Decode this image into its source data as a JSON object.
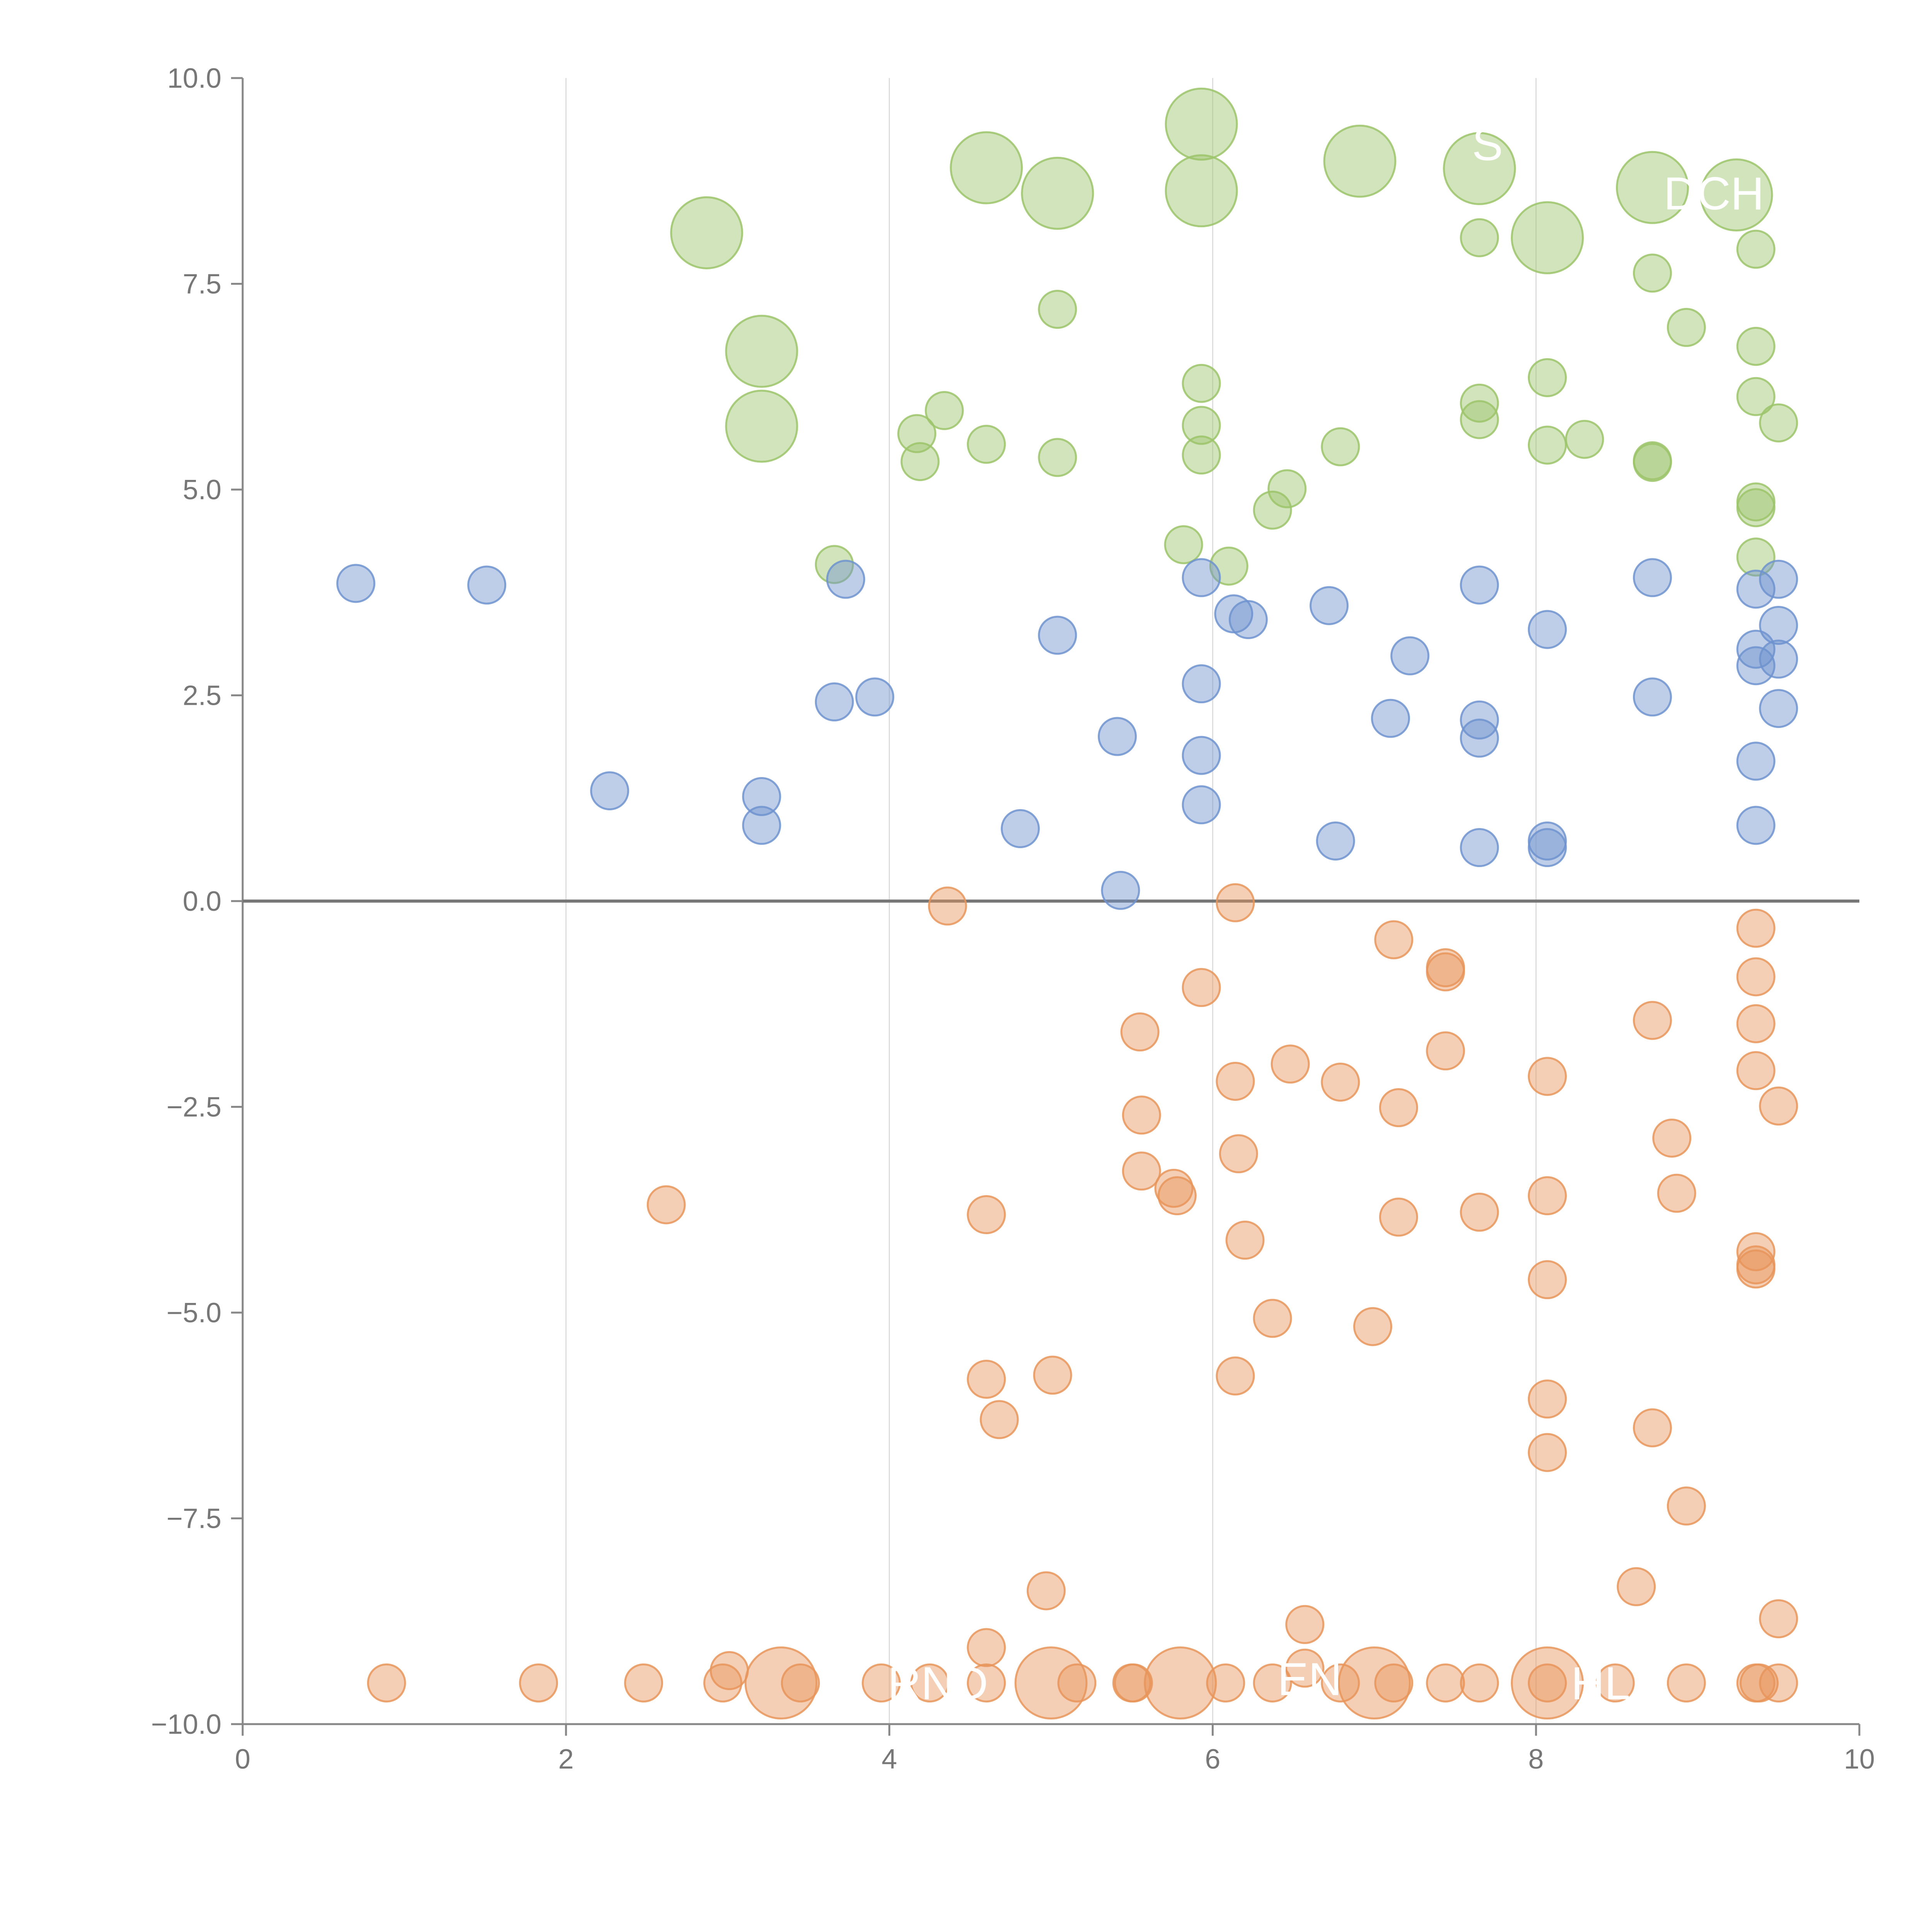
{
  "chart_data": {
    "type": "scatter",
    "title": "",
    "xlabel": "",
    "ylabel": "",
    "xlim": [
      0,
      10
    ],
    "ylim": [
      -10,
      10
    ],
    "x_ticks": [
      "0",
      "2",
      "4",
      "6",
      "8",
      "10"
    ],
    "y_ticks": [
      "−10.0",
      "−7.5",
      "−5.0",
      "−2.5",
      "0.0",
      "2.5",
      "5.0",
      "7.5",
      "10.0"
    ],
    "x_gridlines": [
      2,
      4,
      6,
      8
    ],
    "zero_line": 0,
    "grid": "vertical",
    "legend": "none",
    "colors": {
      "green": "#9cc46a",
      "blue": "#6f93cf",
      "orange": "#e8955a",
      "axis": "#888888",
      "zero_line": "#777777"
    },
    "point_labels": [
      {
        "text": "S",
        "x": 7.7,
        "y": 9.2
      },
      {
        "text": "DCH",
        "x": 9.1,
        "y": 8.6
      },
      {
        "text": "RND",
        "x": 4.3,
        "y": -9.5
      },
      {
        "text": "EN",
        "x": 6.6,
        "y": -9.45
      },
      {
        "text": "HL",
        "x": 8.4,
        "y": -9.5
      }
    ],
    "series": [
      {
        "color": "#9cc46a",
        "points": [
          [
            2.87,
            8.12,
            "L"
          ],
          [
            3.21,
            6.68,
            "L"
          ],
          [
            3.21,
            5.77,
            "L"
          ],
          [
            4.6,
            8.91,
            "L"
          ],
          [
            5.04,
            8.6,
            "L"
          ],
          [
            5.93,
            9.44,
            "L"
          ],
          [
            5.93,
            8.63,
            "L"
          ],
          [
            6.91,
            8.99,
            "L"
          ],
          [
            7.65,
            8.9,
            "L"
          ],
          [
            8.07,
            8.06,
            "L"
          ],
          [
            8.72,
            8.67,
            "L"
          ],
          [
            9.24,
            8.58,
            "L"
          ],
          [
            7.65,
            8.06,
            "S"
          ],
          [
            8.72,
            7.63,
            "S"
          ],
          [
            9.36,
            7.92,
            "S"
          ],
          [
            5.04,
            7.19,
            "S"
          ],
          [
            8.93,
            6.97,
            "S"
          ],
          [
            9.36,
            6.74,
            "S"
          ],
          [
            5.93,
            6.29,
            "S"
          ],
          [
            8.07,
            6.36,
            "S"
          ],
          [
            9.36,
            6.13,
            "S"
          ],
          [
            7.65,
            6.05,
            "S"
          ],
          [
            7.65,
            5.85,
            "S"
          ],
          [
            9.5,
            5.81,
            "S"
          ],
          [
            4.34,
            5.96,
            "S"
          ],
          [
            4.17,
            5.68,
            "S"
          ],
          [
            4.19,
            5.34,
            "S"
          ],
          [
            4.6,
            5.55,
            "S"
          ],
          [
            5.04,
            5.39,
            "S"
          ],
          [
            5.93,
            5.78,
            "S"
          ],
          [
            5.93,
            5.42,
            "S"
          ],
          [
            6.79,
            5.52,
            "S"
          ],
          [
            8.07,
            5.54,
            "S"
          ],
          [
            8.3,
            5.61,
            "S"
          ],
          [
            8.72,
            5.35,
            "S"
          ],
          [
            8.72,
            5.33,
            "S"
          ],
          [
            6.37,
            4.75,
            "S"
          ],
          [
            6.46,
            5.01,
            "S"
          ],
          [
            9.36,
            4.85,
            "S"
          ],
          [
            9.36,
            4.78,
            "S"
          ],
          [
            9.36,
            4.18,
            "S"
          ],
          [
            5.82,
            4.33,
            "S"
          ],
          [
            6.1,
            4.07,
            "S"
          ],
          [
            3.66,
            4.09,
            "S"
          ]
        ]
      },
      {
        "color": "#6f93cf",
        "points": [
          [
            0.7,
            3.86,
            "S"
          ],
          [
            1.51,
            3.84,
            "S"
          ],
          [
            3.73,
            3.91,
            "S"
          ],
          [
            5.93,
            3.93,
            "S"
          ],
          [
            6.72,
            3.59,
            "S"
          ],
          [
            6.13,
            3.49,
            "S"
          ],
          [
            6.22,
            3.42,
            "S"
          ],
          [
            7.65,
            3.84,
            "S"
          ],
          [
            8.72,
            3.93,
            "S"
          ],
          [
            9.36,
            3.79,
            "S"
          ],
          [
            9.5,
            3.91,
            "S"
          ],
          [
            9.5,
            3.35,
            "S"
          ],
          [
            5.04,
            3.23,
            "S"
          ],
          [
            7.22,
            2.98,
            "S"
          ],
          [
            8.07,
            3.3,
            "S"
          ],
          [
            9.36,
            3.06,
            "S"
          ],
          [
            9.36,
            2.86,
            "S"
          ],
          [
            9.5,
            2.94,
            "S"
          ],
          [
            3.66,
            2.42,
            "S"
          ],
          [
            3.91,
            2.48,
            "S"
          ],
          [
            5.93,
            2.64,
            "S"
          ],
          [
            7.1,
            2.22,
            "S"
          ],
          [
            7.65,
            2.2,
            "S"
          ],
          [
            7.65,
            1.98,
            "S"
          ],
          [
            8.72,
            2.48,
            "S"
          ],
          [
            9.5,
            2.34,
            "S"
          ],
          [
            5.41,
            2.0,
            "S"
          ],
          [
            5.93,
            1.77,
            "S"
          ],
          [
            9.36,
            1.7,
            "S"
          ],
          [
            2.27,
            1.34,
            "S"
          ],
          [
            3.21,
            1.27,
            "S"
          ],
          [
            3.21,
            0.92,
            "S"
          ],
          [
            4.81,
            0.88,
            "S"
          ],
          [
            5.93,
            1.17,
            "S"
          ],
          [
            6.76,
            0.73,
            "S"
          ],
          [
            7.65,
            0.65,
            "S"
          ],
          [
            8.07,
            0.73,
            "S"
          ],
          [
            8.07,
            0.65,
            "S"
          ],
          [
            9.36,
            0.92,
            "S"
          ],
          [
            5.43,
            0.13,
            "S"
          ]
        ]
      },
      {
        "color": "#e8955a",
        "points": [
          [
            4.36,
            -0.06,
            "S"
          ],
          [
            6.14,
            -0.02,
            "S"
          ],
          [
            9.36,
            -0.33,
            "S"
          ],
          [
            7.12,
            -0.47,
            "S"
          ],
          [
            7.44,
            -0.81,
            "S"
          ],
          [
            7.44,
            -0.86,
            "S"
          ],
          [
            9.36,
            -0.92,
            "S"
          ],
          [
            5.93,
            -1.05,
            "S"
          ],
          [
            8.72,
            -1.45,
            "S"
          ],
          [
            9.36,
            -1.49,
            "S"
          ],
          [
            5.55,
            -1.59,
            "S"
          ],
          [
            7.44,
            -1.82,
            "S"
          ],
          [
            6.48,
            -1.98,
            "S"
          ],
          [
            9.36,
            -2.06,
            "S"
          ],
          [
            8.07,
            -2.13,
            "S"
          ],
          [
            6.14,
            -2.19,
            "S"
          ],
          [
            6.79,
            -2.2,
            "S"
          ],
          [
            7.15,
            -2.51,
            "S"
          ],
          [
            9.5,
            -2.49,
            "S"
          ],
          [
            5.56,
            -2.6,
            "S"
          ],
          [
            8.84,
            -2.88,
            "S"
          ],
          [
            6.16,
            -3.07,
            "S"
          ],
          [
            5.56,
            -3.28,
            "S"
          ],
          [
            5.76,
            -3.49,
            "S"
          ],
          [
            5.78,
            -3.58,
            "S"
          ],
          [
            8.07,
            -3.58,
            "S"
          ],
          [
            8.87,
            -3.55,
            "S"
          ],
          [
            2.62,
            -3.69,
            "S"
          ],
          [
            4.6,
            -3.81,
            "S"
          ],
          [
            7.15,
            -3.84,
            "S"
          ],
          [
            7.65,
            -3.78,
            "S"
          ],
          [
            6.2,
            -4.12,
            "S"
          ],
          [
            9.36,
            -4.26,
            "S"
          ],
          [
            9.36,
            -4.42,
            "S"
          ],
          [
            9.36,
            -4.47,
            "S"
          ],
          [
            8.07,
            -4.6,
            "S"
          ],
          [
            6.37,
            -5.07,
            "S"
          ],
          [
            6.99,
            -5.17,
            "S"
          ],
          [
            4.6,
            -5.81,
            "S"
          ],
          [
            5.01,
            -5.76,
            "S"
          ],
          [
            6.14,
            -5.77,
            "S"
          ],
          [
            8.07,
            -6.05,
            "S"
          ],
          [
            4.68,
            -6.3,
            "S"
          ],
          [
            8.72,
            -6.4,
            "S"
          ],
          [
            8.07,
            -6.7,
            "S"
          ],
          [
            8.93,
            -7.35,
            "S"
          ],
          [
            4.97,
            -8.38,
            "S"
          ],
          [
            8.62,
            -8.33,
            "S"
          ],
          [
            9.5,
            -8.72,
            "S"
          ],
          [
            6.57,
            -8.79,
            "S"
          ],
          [
            4.6,
            -9.07,
            "S"
          ],
          [
            3.01,
            -9.35,
            "S"
          ],
          [
            6.57,
            -9.32,
            "S"
          ],
          [
            0.89,
            -9.5,
            "S"
          ],
          [
            1.83,
            -9.5,
            "S"
          ],
          [
            2.48,
            -9.5,
            "S"
          ],
          [
            2.97,
            -9.5,
            "S"
          ],
          [
            3.45,
            -9.5,
            "S"
          ],
          [
            3.95,
            -9.5,
            "S"
          ],
          [
            4.25,
            -9.5,
            "S"
          ],
          [
            4.6,
            -9.5,
            "S"
          ],
          [
            5.16,
            -9.5,
            "S"
          ],
          [
            5.5,
            -9.5,
            "S"
          ],
          [
            5.51,
            -9.5,
            "S"
          ],
          [
            6.08,
            -9.5,
            "S"
          ],
          [
            6.37,
            -9.5,
            "S"
          ],
          [
            6.79,
            -9.5,
            "S"
          ],
          [
            7.12,
            -9.5,
            "S"
          ],
          [
            7.44,
            -9.5,
            "S"
          ],
          [
            7.65,
            -9.5,
            "S"
          ],
          [
            8.07,
            -9.5,
            "S"
          ],
          [
            8.49,
            -9.5,
            "S"
          ],
          [
            8.93,
            -9.5,
            "S"
          ],
          [
            9.36,
            -9.5,
            "S"
          ],
          [
            9.38,
            -9.5,
            "S"
          ],
          [
            9.5,
            -9.5,
            "S"
          ],
          [
            3.33,
            -9.5,
            "L"
          ],
          [
            5.0,
            -9.5,
            "L"
          ],
          [
            5.8,
            -9.5,
            "L"
          ],
          [
            7.0,
            -9.5,
            "L"
          ],
          [
            8.07,
            -9.5,
            "L"
          ]
        ]
      }
    ]
  }
}
